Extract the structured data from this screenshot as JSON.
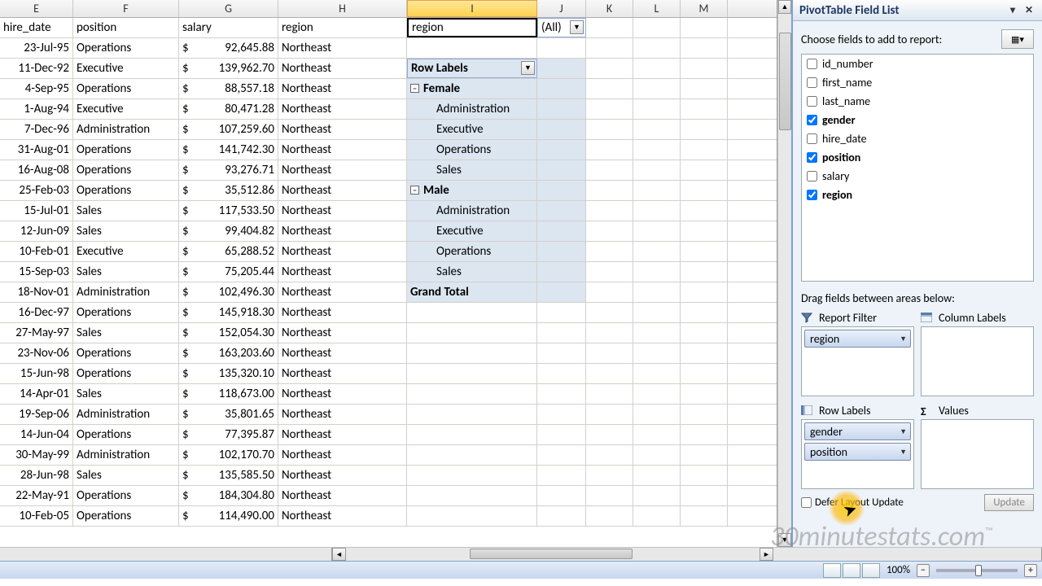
{
  "colHeaders": [
    "E",
    "F",
    "G",
    "H",
    "I",
    "J",
    "K",
    "L",
    "M"
  ],
  "activeCol": "I",
  "headerRow": {
    "E": "hire_date",
    "F": "position",
    "G": "salary",
    "H": "region",
    "I": "region"
  },
  "filterValue": "(All)",
  "rowLabelsHeader": "Row Labels",
  "grandTotal": "Grand Total",
  "pivotGroups": [
    {
      "label": "Female",
      "items": [
        "Administration",
        "Executive",
        "Operations",
        "Sales"
      ]
    },
    {
      "label": "Male",
      "items": [
        "Administration",
        "Executive",
        "Operations",
        "Sales"
      ]
    }
  ],
  "dataRows": [
    {
      "E": "23-Jul-95",
      "F": "Operations",
      "G": "92,645.88",
      "H": "Northeast"
    },
    {
      "E": "11-Dec-92",
      "F": "Executive",
      "G": "139,962.70",
      "H": "Northeast"
    },
    {
      "E": "4-Sep-95",
      "F": "Operations",
      "G": "88,557.18",
      "H": "Northeast"
    },
    {
      "E": "1-Aug-94",
      "F": "Executive",
      "G": "80,471.28",
      "H": "Northeast"
    },
    {
      "E": "7-Dec-96",
      "F": "Administration",
      "G": "107,259.60",
      "H": "Northeast"
    },
    {
      "E": "31-Aug-01",
      "F": "Operations",
      "G": "141,742.30",
      "H": "Northeast"
    },
    {
      "E": "16-Aug-08",
      "F": "Operations",
      "G": "93,276.71",
      "H": "Northeast"
    },
    {
      "E": "25-Feb-03",
      "F": "Operations",
      "G": "35,512.86",
      "H": "Northeast"
    },
    {
      "E": "15-Jul-01",
      "F": "Sales",
      "G": "117,533.50",
      "H": "Northeast"
    },
    {
      "E": "12-Jun-09",
      "F": "Sales",
      "G": "99,404.82",
      "H": "Northeast"
    },
    {
      "E": "10-Feb-01",
      "F": "Executive",
      "G": "65,288.52",
      "H": "Northeast"
    },
    {
      "E": "15-Sep-03",
      "F": "Sales",
      "G": "75,205.44",
      "H": "Northeast"
    },
    {
      "E": "18-Nov-01",
      "F": "Administration",
      "G": "102,496.30",
      "H": "Northeast"
    },
    {
      "E": "16-Dec-97",
      "F": "Operations",
      "G": "145,918.30",
      "H": "Northeast"
    },
    {
      "E": "27-May-97",
      "F": "Sales",
      "G": "152,054.30",
      "H": "Northeast"
    },
    {
      "E": "23-Nov-06",
      "F": "Operations",
      "G": "163,203.60",
      "H": "Northeast"
    },
    {
      "E": "15-Jun-98",
      "F": "Operations",
      "G": "135,320.10",
      "H": "Northeast"
    },
    {
      "E": "14-Apr-01",
      "F": "Sales",
      "G": "118,673.00",
      "H": "Northeast"
    },
    {
      "E": "19-Sep-06",
      "F": "Administration",
      "G": "35,801.65",
      "H": "Northeast"
    },
    {
      "E": "14-Jun-04",
      "F": "Operations",
      "G": "77,395.87",
      "H": "Northeast"
    },
    {
      "E": "30-May-99",
      "F": "Administration",
      "G": "102,170.70",
      "H": "Northeast"
    },
    {
      "E": "28-Jun-98",
      "F": "Sales",
      "G": "135,585.50",
      "H": "Northeast"
    },
    {
      "E": "22-May-91",
      "F": "Operations",
      "G": "184,304.80",
      "H": "Northeast"
    },
    {
      "E": "10-Feb-05",
      "F": "Operations",
      "G": "114,490.00",
      "H": "Northeast"
    }
  ],
  "currencySymbol": "$",
  "pane": {
    "title": "PivotTable Field List",
    "chooseLabel": "Choose fields to add to report:",
    "fields": [
      {
        "name": "id_number",
        "checked": false
      },
      {
        "name": "first_name",
        "checked": false
      },
      {
        "name": "last_name",
        "checked": false
      },
      {
        "name": "gender",
        "checked": true
      },
      {
        "name": "hire_date",
        "checked": false
      },
      {
        "name": "position",
        "checked": true
      },
      {
        "name": "salary",
        "checked": false
      },
      {
        "name": "region",
        "checked": true
      }
    ],
    "dragLabel": "Drag fields between areas below:",
    "areas": {
      "reportFilter": {
        "label": "Report Filter",
        "chips": [
          "region"
        ]
      },
      "columnLabels": {
        "label": "Column Labels",
        "chips": []
      },
      "rowLabels": {
        "label": "Row Labels",
        "chips": [
          "gender",
          "position"
        ]
      },
      "values": {
        "label": "Values",
        "chips": []
      }
    },
    "deferLabel": "Defer Layout Update",
    "updateBtn": "Update"
  },
  "status": {
    "zoom": "100%"
  },
  "watermark": "30minutestats.com",
  "colors": {
    "activeHeader": "#ffd34e",
    "pivotBg": "#dce6f1",
    "paneBg": "#eef3f9",
    "paneBorder": "#7da2ce",
    "chipBg": "#c7d7ef"
  }
}
